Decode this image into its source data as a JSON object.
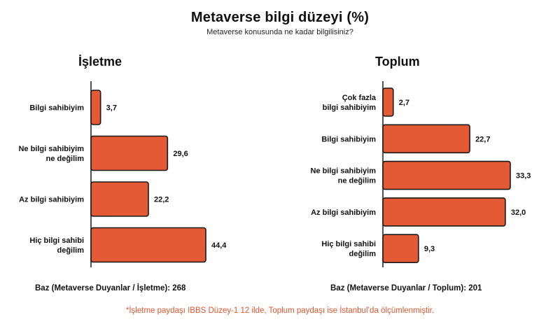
{
  "title": "Metaverse bilgi düzeyi (%)",
  "subtitle": "Metaverse konusunda ne kadar bilgilisiniz?",
  "colors": {
    "bar_fill": "#e35a35",
    "bar_stroke": "#1a1a1a",
    "footnote": "#e05530"
  },
  "chart_data": [
    {
      "type": "bar",
      "orientation": "horizontal",
      "title": "İşletme",
      "categories": [
        [
          "Bilgi sahibiyim"
        ],
        [
          "Ne bilgi sahibiyim",
          "ne değilim"
        ],
        [
          "Az bilgi sahibiyim"
        ],
        [
          "Hiç bilgi sahibi",
          "değilim"
        ]
      ],
      "values": [
        3.7,
        29.6,
        22.2,
        44.4
      ],
      "value_labels": [
        "3,7",
        "29,6",
        "22,2",
        "44,4"
      ],
      "xlim": [
        0,
        44.4
      ],
      "grid": false,
      "base_note": "Baz (Metaverse Duyanlar / İşletme): 268"
    },
    {
      "type": "bar",
      "orientation": "horizontal",
      "title": "Toplum",
      "categories": [
        [
          "Çok fazla",
          "bilgi sahibiyim"
        ],
        [
          "Bilgi sahibiyim"
        ],
        [
          "Ne bilgi sahibiyim",
          "ne değilim"
        ],
        [
          "Az bilgi sahibiyim"
        ],
        [
          "Hiç bilgi sahibi",
          "değilim"
        ]
      ],
      "values": [
        2.7,
        22.7,
        33.3,
        32.0,
        9.3
      ],
      "value_labels": [
        "2,7",
        "22,7",
        "33,3",
        "32,0",
        "9,3"
      ],
      "xlim": [
        0,
        33.3
      ],
      "grid": false,
      "base_note": "Baz (Metaverse Duyanlar / Toplum): 201"
    }
  ],
  "footnote": "*İşletme paydaşı IBBS Düzey-1 12 ilde, Toplum paydaşı ise İstanbul’da ölçümlenmiştir."
}
